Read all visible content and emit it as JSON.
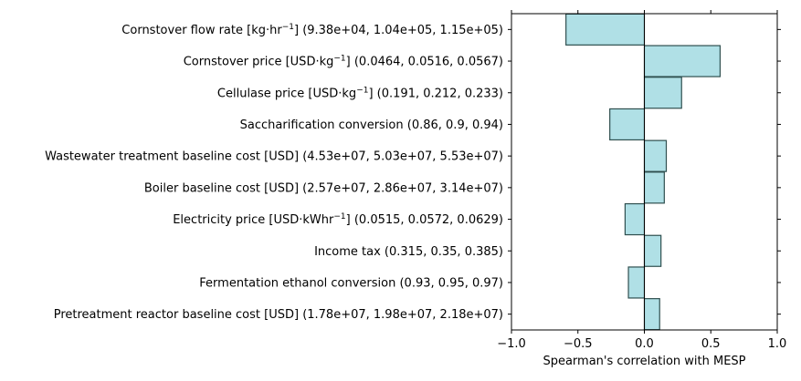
{
  "chart_data": {
    "type": "bar",
    "orientation": "horizontal",
    "xlabel": "Spearman's correlation with MESP",
    "ylabel": "",
    "xlim": [
      -1.0,
      1.0
    ],
    "xticks": [
      -1.0,
      -0.5,
      0.0,
      0.5,
      1.0
    ],
    "xtick_labels": [
      "−1.0",
      "−0.5",
      "0.0",
      "0.5",
      "1.0"
    ],
    "grid": false,
    "bar_color": "#b0e0e6",
    "edge_color": "#2f4f4f",
    "categories": [
      {
        "name": "Cornstover flow rate [kg·hr",
        "sup": "−1",
        "rest": "] (9.38e+04, 1.04e+05, 1.15e+05)"
      },
      {
        "name": "Cornstover price [USD·kg",
        "sup": "−1",
        "rest": "] (0.0464, 0.0516, 0.0567)"
      },
      {
        "name": "Cellulase price [USD·kg",
        "sup": "−1",
        "rest": "] (0.191, 0.212, 0.233)"
      },
      {
        "name": "Saccharification conversion (0.86, 0.9, 0.94)",
        "sup": "",
        "rest": ""
      },
      {
        "name": "Wastewater treatment baseline cost [USD] (4.53e+07, 5.03e+07, 5.53e+07)",
        "sup": "",
        "rest": ""
      },
      {
        "name": "Boiler baseline cost [USD] (2.57e+07, 2.86e+07, 3.14e+07)",
        "sup": "",
        "rest": ""
      },
      {
        "name": "Electricity price [USD·kWhr",
        "sup": "−1",
        "rest": "] (0.0515, 0.0572, 0.0629)"
      },
      {
        "name": "Income tax (0.315, 0.35, 0.385)",
        "sup": "",
        "rest": ""
      },
      {
        "name": "Fermentation ethanol conversion (0.93, 0.95, 0.97)",
        "sup": "",
        "rest": ""
      },
      {
        "name": "Pretreatment reactor baseline cost [USD] (1.78e+07, 1.98e+07, 2.18e+07)",
        "sup": "",
        "rest": ""
      }
    ],
    "values": [
      -0.59,
      0.57,
      0.28,
      -0.26,
      0.165,
      0.15,
      -0.145,
      0.125,
      -0.12,
      0.115
    ]
  }
}
